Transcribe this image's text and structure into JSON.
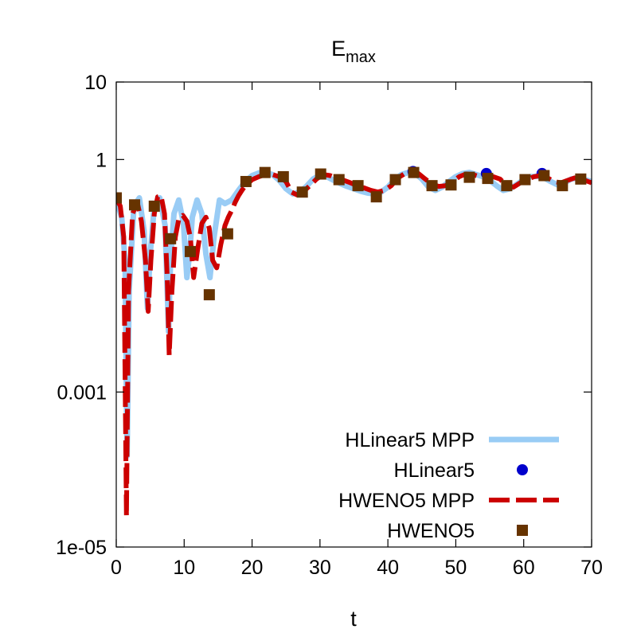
{
  "chart_data": {
    "type": "line",
    "title_main": "E",
    "title_sub": "max",
    "xlabel": "t",
    "ylabel": "",
    "xlim": [
      0,
      70
    ],
    "ylim": [
      1e-05,
      10
    ],
    "yscale": "log",
    "x_ticks": [
      0,
      10,
      20,
      30,
      40,
      50,
      60,
      70
    ],
    "x_tick_labels": [
      "0",
      "10",
      "20",
      "30",
      "40",
      "50",
      "60",
      "70"
    ],
    "y_ticks": [
      1e-05,
      0.001,
      1,
      10
    ],
    "y_tick_labels": [
      "1e-05",
      "0.001",
      "1",
      "10"
    ],
    "grid": false,
    "legend_position": "bottom-right",
    "series": [
      {
        "name": "HLinear5 MPP",
        "style": "line",
        "color": "#99ccf5",
        "x": [
          0,
          0.8,
          1.3,
          1.6,
          1.9,
          2.6,
          3.4,
          4.1,
          4.6,
          5.0,
          5.6,
          6.4,
          7.2,
          7.7,
          8.0,
          8.5,
          9.2,
          9.9,
          10.4,
          10.8,
          11.2,
          11.9,
          12.6,
          13.2,
          13.8,
          14.4,
          15.2,
          16.0,
          17.0,
          18.0,
          19.0,
          20.0,
          21.0,
          22.0,
          23.0,
          24.0,
          25.0,
          26.0,
          27.0,
          28.0,
          29.0,
          30.0,
          31.0,
          32.0,
          33.0,
          34.0,
          35.0,
          36.0,
          37.0,
          38.0,
          39.0,
          40.0,
          41.0,
          42.0,
          43.0,
          44.0,
          45.0,
          46.0,
          47.0,
          48.0,
          49.0,
          50.0,
          51.0,
          52.0,
          53.0,
          54.0,
          55.0,
          56.0,
          57.0,
          58.0,
          59.0,
          60.0,
          61.0,
          62.0,
          63.0,
          64.0,
          65.0,
          66.0,
          67.0,
          68.0,
          69.0,
          70.0
        ],
        "values": [
          0.3,
          0.18,
          0.05,
          0.00015,
          0.02,
          0.25,
          0.32,
          0.12,
          0.012,
          0.06,
          0.25,
          0.32,
          0.14,
          0.006,
          0.05,
          0.2,
          0.3,
          0.15,
          0.03,
          0.06,
          0.18,
          0.3,
          0.2,
          0.06,
          0.03,
          0.1,
          0.3,
          0.27,
          0.3,
          0.4,
          0.52,
          0.62,
          0.67,
          0.68,
          0.64,
          0.54,
          0.42,
          0.36,
          0.38,
          0.45,
          0.56,
          0.63,
          0.6,
          0.54,
          0.49,
          0.45,
          0.42,
          0.39,
          0.37,
          0.36,
          0.38,
          0.44,
          0.55,
          0.64,
          0.68,
          0.66,
          0.56,
          0.44,
          0.4,
          0.44,
          0.52,
          0.6,
          0.66,
          0.68,
          0.64,
          0.6,
          0.54,
          0.46,
          0.4,
          0.42,
          0.48,
          0.55,
          0.6,
          0.61,
          0.58,
          0.52,
          0.47,
          0.5,
          0.56,
          0.58,
          0.55,
          0.52
        ]
      },
      {
        "name": "HLinear5",
        "style": "points-circle",
        "color": "#0000cc",
        "x": [
          43.7,
          54.5,
          62.7
        ],
        "values": [
          0.7,
          0.66,
          0.66
        ]
      },
      {
        "name": "HWENO5 MPP",
        "style": "dashed",
        "color": "#cc0000",
        "x": [
          0,
          0.6,
          1.1,
          1.5,
          1.8,
          2.4,
          3.1,
          3.7,
          4.3,
          4.7,
          5.1,
          5.6,
          6.1,
          6.6,
          7.1,
          7.5,
          7.8,
          8.2,
          8.7,
          9.2,
          9.8,
          10.4,
          10.9,
          11.4,
          12.0,
          12.6,
          13.2,
          13.7,
          14.2,
          14.8,
          15.4,
          16.0,
          16.5,
          17.0,
          17.5,
          18.0,
          18.5,
          19.0,
          20.0,
          21.0,
          22.0,
          23.0,
          24.0,
          25.0,
          25.8,
          26.6,
          27.5,
          28.5,
          29.5,
          30.5,
          31.5,
          32.5,
          33.5,
          34.5,
          35.5,
          36.5,
          37.5,
          38.5,
          39.5,
          40.5,
          41.5,
          42.5,
          43.5,
          44.5,
          45.5,
          46.5,
          47.5,
          48.5,
          49.5,
          50.5,
          51.5,
          52.5,
          53.5,
          54.5,
          55.5,
          56.5,
          57.5,
          58.5,
          59.5,
          60.5,
          61.5,
          62.5,
          63.5,
          64.5,
          65.5,
          66.5,
          67.5,
          68.5,
          69.5,
          70.0
        ],
        "values": [
          0.32,
          0.25,
          0.1,
          2.5e-05,
          0.02,
          0.2,
          0.28,
          0.16,
          0.05,
          0.011,
          0.05,
          0.2,
          0.33,
          0.34,
          0.2,
          0.03,
          0.003,
          0.02,
          0.1,
          0.17,
          0.19,
          0.16,
          0.1,
          0.03,
          0.07,
          0.15,
          0.18,
          0.13,
          0.05,
          0.04,
          0.08,
          0.14,
          0.18,
          0.22,
          0.28,
          0.34,
          0.4,
          0.46,
          0.55,
          0.6,
          0.64,
          0.64,
          0.6,
          0.52,
          0.38,
          0.35,
          0.38,
          0.46,
          0.56,
          0.64,
          0.62,
          0.57,
          0.54,
          0.5,
          0.46,
          0.43,
          0.4,
          0.38,
          0.4,
          0.46,
          0.58,
          0.66,
          0.7,
          0.66,
          0.56,
          0.48,
          0.45,
          0.46,
          0.52,
          0.6,
          0.65,
          0.64,
          0.6,
          0.58,
          0.6,
          0.56,
          0.46,
          0.44,
          0.5,
          0.55,
          0.6,
          0.62,
          0.58,
          0.52,
          0.5,
          0.54,
          0.58,
          0.56,
          0.52,
          0.5
        ]
      },
      {
        "name": "HWENO5",
        "style": "points-square",
        "color": "#663300",
        "x": [
          0,
          2.7,
          5.6,
          8.0,
          10.9,
          13.7,
          16.4,
          19.1,
          21.9,
          24.6,
          27.4,
          30.1,
          32.8,
          35.6,
          38.3,
          41.1,
          43.8,
          46.5,
          49.3,
          52.0,
          54.7,
          57.5,
          60.2,
          63.0,
          65.7,
          68.4
        ],
        "values": [
          0.32,
          0.26,
          0.25,
          0.095,
          0.065,
          0.018,
          0.11,
          0.52,
          0.68,
          0.6,
          0.38,
          0.65,
          0.55,
          0.46,
          0.33,
          0.55,
          0.68,
          0.46,
          0.47,
          0.59,
          0.57,
          0.46,
          0.55,
          0.62,
          0.46,
          0.56
        ]
      }
    ]
  }
}
